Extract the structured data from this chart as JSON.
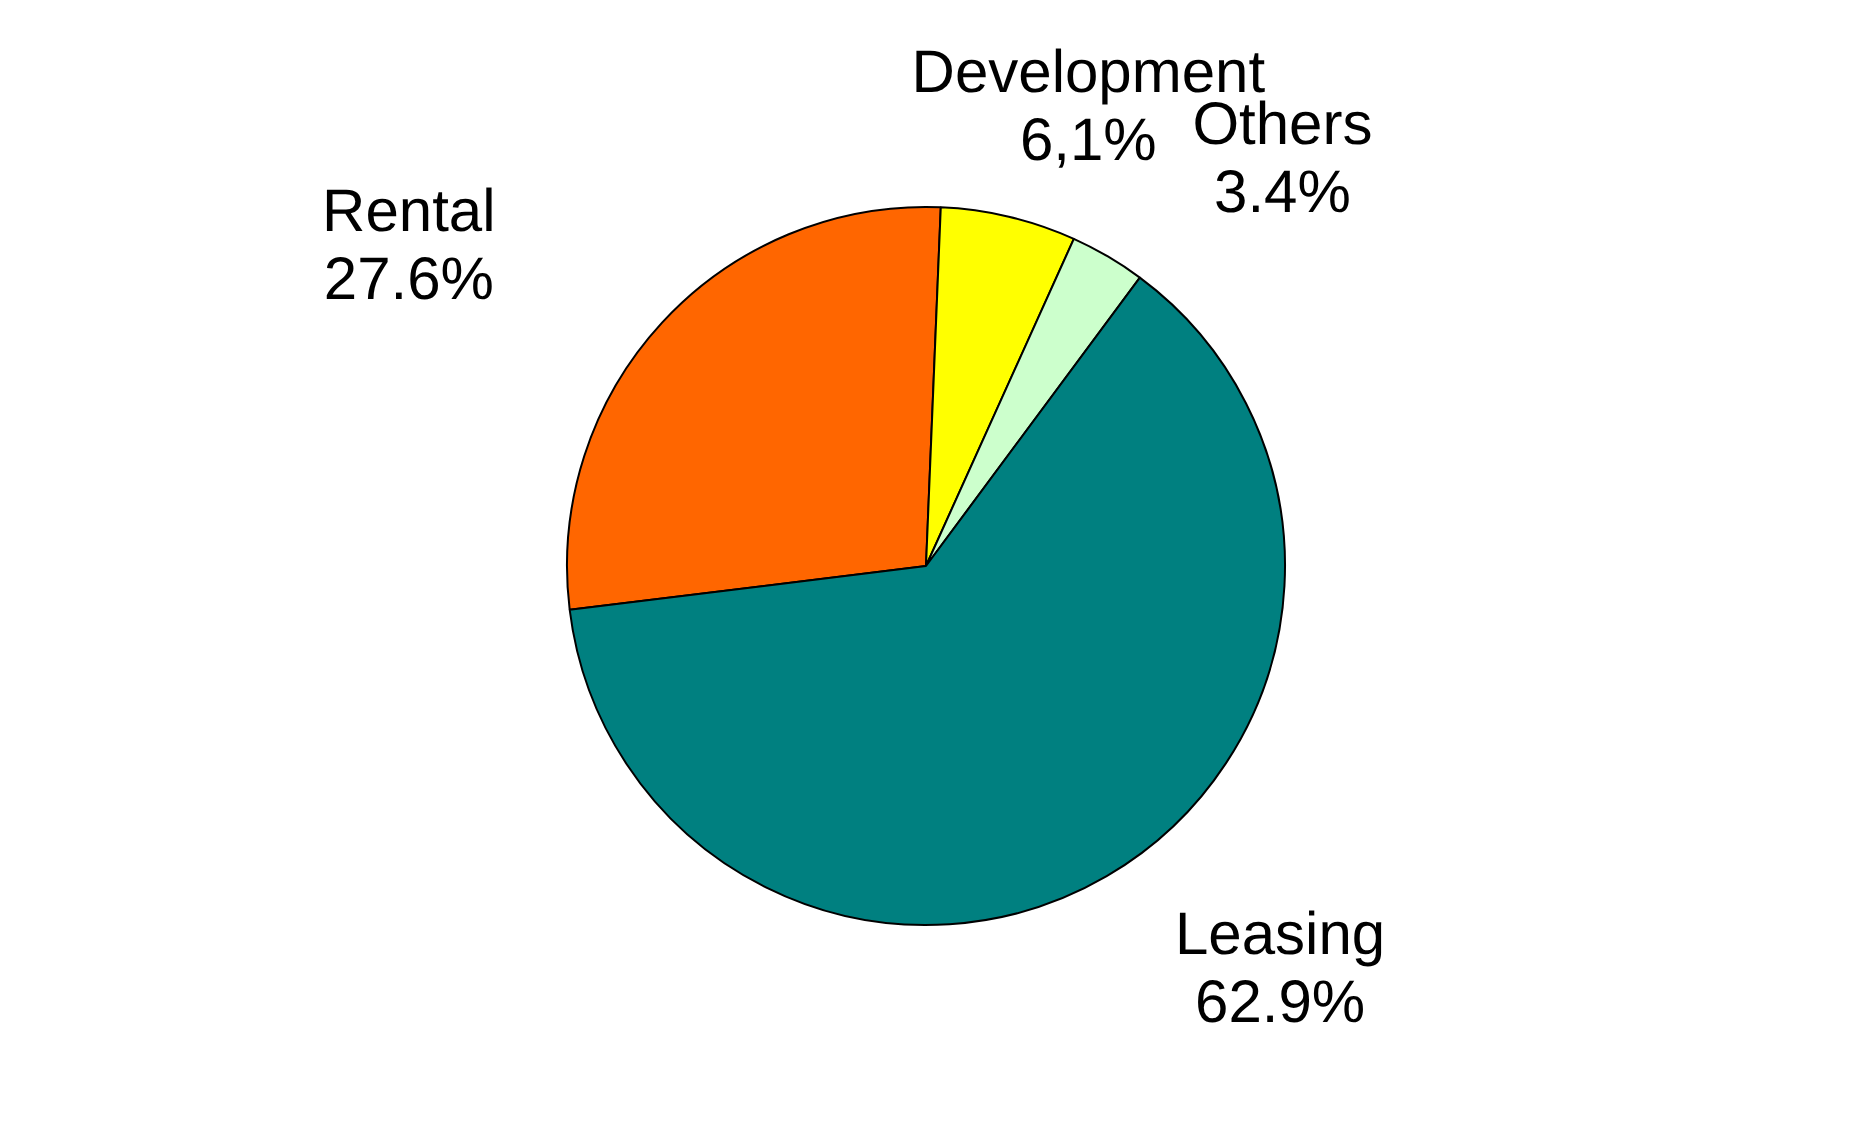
{
  "chart_data": {
    "type": "pie",
    "categories": [
      "Rental",
      "Development",
      "Others",
      "Leasing"
    ],
    "values": [
      27.6,
      6.1,
      3.4,
      62.9
    ],
    "colors": [
      "#ff6600",
      "#ffff00",
      "#ccffcc",
      "#008080"
    ],
    "value_labels": [
      "27.6%",
      "6,1%",
      "3.4%",
      "62.9%"
    ]
  }
}
